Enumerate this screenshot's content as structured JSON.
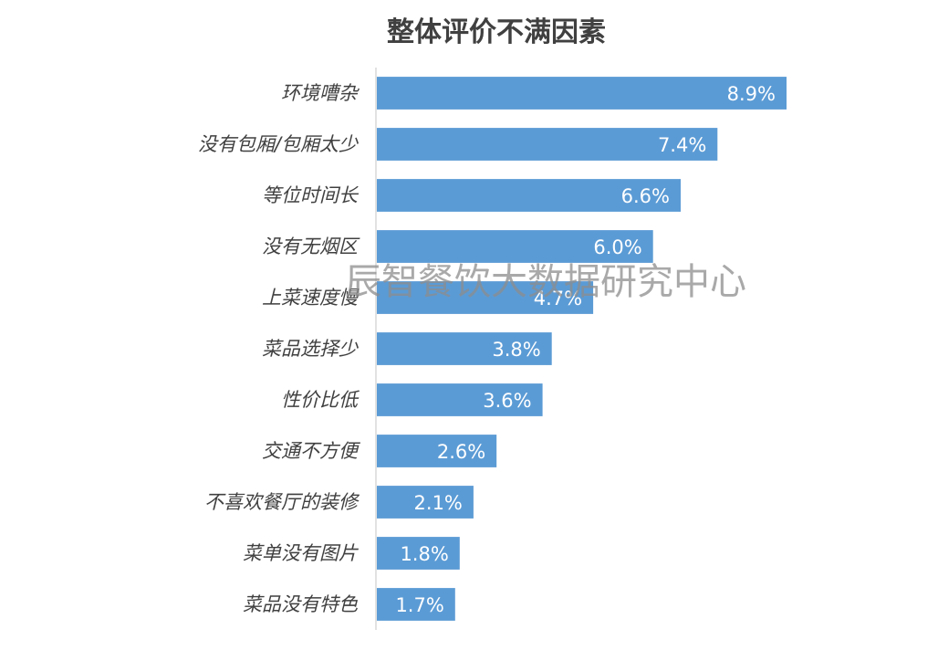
{
  "chart_data": {
    "type": "bar",
    "orientation": "horizontal",
    "title": "整体评价不满因素",
    "categories": [
      "环境嘈杂",
      "没有包厢/包厢太少",
      "等位时间长",
      "没有无烟区",
      "上菜速度慢",
      "菜品选择少",
      "性价比低",
      "交通不方便",
      "不喜欢餐厅的装修",
      "菜单没有图片",
      "菜品没有特色"
    ],
    "values": [
      8.9,
      7.4,
      6.6,
      6.0,
      4.7,
      3.8,
      3.6,
      2.6,
      2.1,
      1.8,
      1.7
    ],
    "value_labels": [
      "8.9%",
      "7.4%",
      "6.6%",
      "6.0%",
      "4.7%",
      "3.8%",
      "3.6%",
      "2.6%",
      "2.1%",
      "1.8%",
      "1.7%"
    ],
    "unit": "%",
    "xlim": [
      0,
      10
    ],
    "grid": false,
    "legend": "none",
    "bar_color": "#5b9bd5",
    "axis_color": "#d9d9d9"
  },
  "watermark": "辰智餐饮大数据研究中心"
}
